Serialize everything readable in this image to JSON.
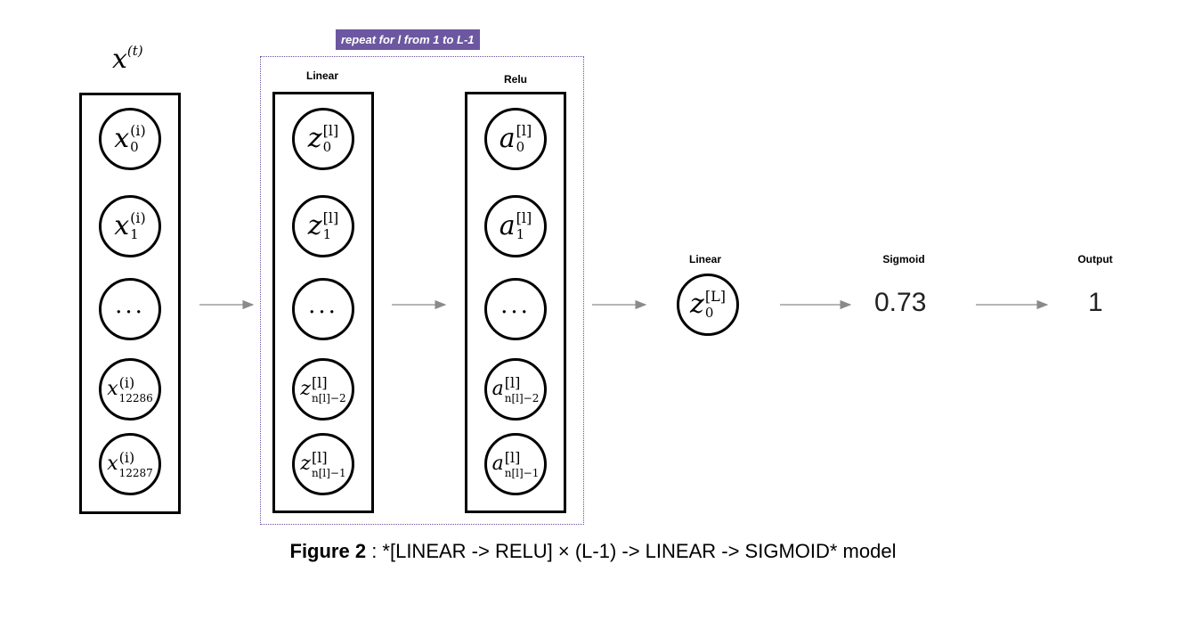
{
  "input_layer": {
    "title_var": "x",
    "title_sup": "(t)",
    "nodes": [
      {
        "base": "x",
        "sup": "(i)",
        "sub": "0"
      },
      {
        "base": "x",
        "sup": "(i)",
        "sub": "1"
      },
      {
        "dots": "..."
      },
      {
        "base": "x",
        "sup": "(i)",
        "sub": "12286"
      },
      {
        "base": "x",
        "sup": "(i)",
        "sub": "12287"
      }
    ]
  },
  "repeat_block": {
    "tag": "repeat for l from 1 to L-1",
    "linear_label": "Linear",
    "relu_label": "Relu",
    "z_nodes": [
      {
        "base": "z",
        "sup": "[l]",
        "sub": "0"
      },
      {
        "base": "z",
        "sup": "[l]",
        "sub": "1"
      },
      {
        "dots": "..."
      },
      {
        "base": "z",
        "sup": "[l]",
        "sub": "n[l]−2"
      },
      {
        "base": "z",
        "sup": "[l]",
        "sub": "n[l]−1"
      }
    ],
    "a_nodes": [
      {
        "base": "a",
        "sup": "[l]",
        "sub": "0"
      },
      {
        "base": "a",
        "sup": "[l]",
        "sub": "1"
      },
      {
        "dots": "..."
      },
      {
        "base": "a",
        "sup": "[l]",
        "sub": "n[l]−2"
      },
      {
        "base": "a",
        "sup": "[l]",
        "sub": "n[l]−1"
      }
    ]
  },
  "final_stage": {
    "linear_label": "Linear",
    "node": {
      "base": "z",
      "sup": "[L]",
      "sub": "0"
    },
    "sigmoid_label": "Sigmoid",
    "sigmoid_value": "0.73",
    "output_label": "Output",
    "output_value": "1"
  },
  "caption": {
    "prefix": "Figure 2",
    "text": " : *[LINEAR -> RELU] × (L-1) -> LINEAR -> SIGMOID* model"
  },
  "colors": {
    "repeat_tag_bg": "#6c57a0",
    "arrow": "#8a8a8a"
  }
}
